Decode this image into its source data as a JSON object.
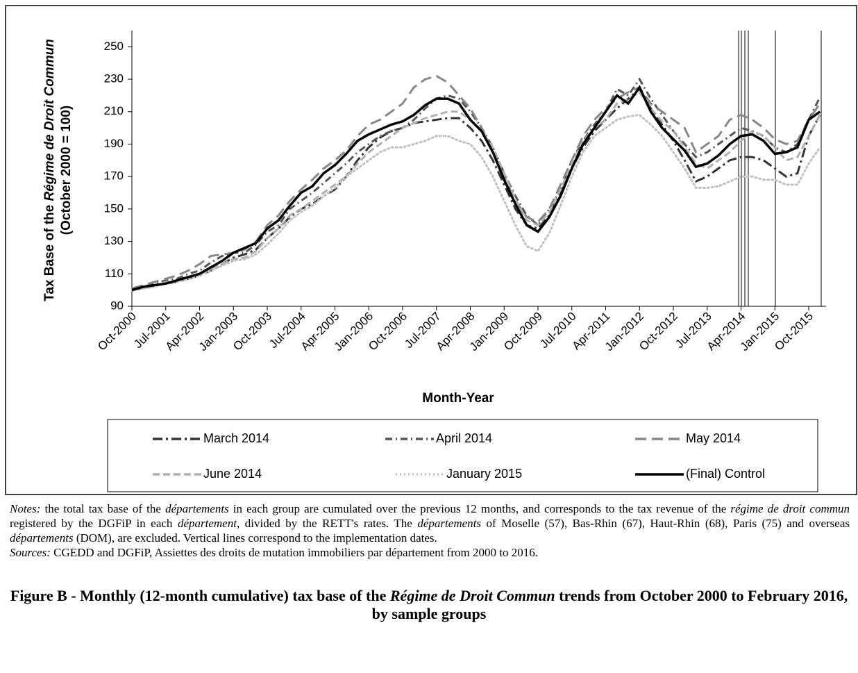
{
  "chart_data": {
    "type": "line",
    "ylabel": [
      {
        "text": "Tax Base of the "
      },
      {
        "text": "Régime de Droit Commun",
        "italic": true
      },
      {
        "text": "(October 2000 = 100)"
      }
    ],
    "xlabel": "Month-Year",
    "categories": [
      "Oct-2000",
      null,
      null,
      "Jul-2001",
      null,
      null,
      "Apr-2002",
      null,
      null,
      "Jan-2003",
      null,
      null,
      "Oct-2003",
      null,
      null,
      "Jul-2004",
      null,
      null,
      "Apr-2005",
      null,
      null,
      "Jan-2006",
      null,
      null,
      "Oct-2006",
      null,
      null,
      "Jul-2007",
      null,
      null,
      "Apr-2008",
      null,
      null,
      "Jan-2009",
      null,
      null,
      "Oct-2009",
      null,
      null,
      "Jul-2010",
      null,
      null,
      "Apr-2011",
      null,
      null,
      "Jan-2012",
      null,
      null,
      "Oct-2012",
      null,
      null,
      "Jul-2013",
      null,
      null,
      "Apr-2014",
      null,
      null,
      "Jan-2015",
      null,
      null,
      "Oct-2015",
      null
    ],
    "ylim": [
      90,
      260
    ],
    "yticks": [
      90,
      110,
      130,
      150,
      170,
      190,
      210,
      230,
      250
    ],
    "grid": false,
    "series": [
      {
        "name": "March 2014",
        "color": "#333333",
        "style": "dash-dot-long",
        "values": [
          100,
          101,
          103,
          104,
          105,
          107,
          109,
          112,
          116,
          120,
          122,
          125,
          132,
          138,
          145,
          150,
          153,
          158,
          162,
          170,
          180,
          188,
          194,
          198,
          200,
          203,
          204,
          205,
          206,
          206,
          200,
          192,
          180,
          165,
          150,
          140,
          138,
          146,
          160,
          175,
          188,
          198,
          205,
          212,
          218,
          224,
          212,
          202,
          192,
          180,
          167,
          170,
          175,
          180,
          182,
          182,
          180,
          175,
          170,
          172,
          195,
          208
        ]
      },
      {
        "name": "April 2014",
        "color": "#555555",
        "style": "dash-dot",
        "values": [
          101,
          102,
          104,
          106,
          107,
          110,
          112,
          117,
          121,
          123,
          123,
          128,
          136,
          140,
          150,
          155,
          160,
          166,
          172,
          178,
          185,
          190,
          195,
          198,
          200,
          205,
          212,
          218,
          220,
          218,
          210,
          200,
          188,
          172,
          158,
          146,
          140,
          150,
          162,
          180,
          192,
          202,
          210,
          224,
          220,
          230,
          218,
          208,
          198,
          190,
          182,
          185,
          190,
          195,
          200,
          198,
          195,
          188,
          185,
          190,
          205,
          219
        ]
      },
      {
        "name": "May 2014",
        "color": "#888888",
        "style": "long-dash",
        "values": [
          101,
          103,
          105,
          107,
          109,
          112,
          116,
          121,
          122,
          123,
          125,
          130,
          140,
          146,
          155,
          162,
          168,
          175,
          180,
          186,
          195,
          202,
          205,
          210,
          215,
          225,
          230,
          232,
          228,
          220,
          212,
          200,
          185,
          170,
          155,
          145,
          142,
          150,
          165,
          180,
          195,
          205,
          212,
          218,
          222,
          225,
          215,
          210,
          205,
          200,
          185,
          190,
          195,
          205,
          208,
          205,
          200,
          193,
          190,
          192,
          205,
          215
        ]
      },
      {
        "name": "June 2014",
        "color": "#b0b0b0",
        "style": "dash",
        "values": [
          100,
          101,
          103,
          105,
          106,
          108,
          110,
          113,
          116,
          119,
          120,
          124,
          132,
          138,
          146,
          150,
          155,
          160,
          165,
          170,
          178,
          185,
          190,
          195,
          200,
          203,
          206,
          208,
          210,
          210,
          205,
          198,
          188,
          172,
          156,
          143,
          140,
          148,
          162,
          178,
          192,
          200,
          205,
          215,
          218,
          222,
          212,
          204,
          198,
          188,
          178,
          175,
          180,
          185,
          192,
          198,
          195,
          188,
          180,
          182,
          195,
          208
        ]
      },
      {
        "name": "January 2015",
        "color": "#c0c0c0",
        "style": "dot",
        "values": [
          100,
          101,
          102,
          104,
          105,
          107,
          109,
          112,
          115,
          118,
          119,
          122,
          128,
          135,
          143,
          148,
          152,
          158,
          163,
          170,
          175,
          180,
          185,
          188,
          188,
          190,
          192,
          195,
          195,
          192,
          190,
          182,
          170,
          155,
          140,
          127,
          124,
          135,
          152,
          170,
          185,
          195,
          200,
          205,
          207,
          208,
          202,
          195,
          185,
          175,
          163,
          163,
          164,
          167,
          170,
          170,
          168,
          168,
          165,
          165,
          178,
          188
        ]
      },
      {
        "name": "(Final) Control",
        "color": "#000000",
        "style": "solid",
        "values": [
          100,
          102,
          103,
          104,
          106,
          108,
          110,
          114,
          118,
          123,
          126,
          129,
          138,
          143,
          152,
          160,
          164,
          172,
          177,
          184,
          192,
          196,
          199,
          202,
          204,
          208,
          214,
          218,
          218,
          215,
          205,
          198,
          185,
          168,
          153,
          140,
          136,
          145,
          158,
          175,
          190,
          200,
          210,
          220,
          215,
          225,
          210,
          200,
          193,
          186,
          176,
          178,
          183,
          190,
          195,
          196,
          192,
          184,
          185,
          188,
          205,
          210
        ]
      }
    ]
  },
  "notes": [
    {
      "text": "Notes:",
      "italic": true
    },
    {
      "text": " the total tax base of the "
    },
    {
      "text": "départements",
      "italic": true
    },
    {
      "text": " in each group are cumulated over the previous 12 months, and corresponds to the tax revenue of the "
    },
    {
      "text": "régime de droit commun",
      "italic": true
    },
    {
      "text": " registered by the DGFiP in each "
    },
    {
      "text": "département",
      "italic": true
    },
    {
      "text": ", divided by the RETT's rates. The "
    },
    {
      "text": "départements",
      "italic": true
    },
    {
      "text": " of Moselle (57), Bas-Rhin (67), Haut-Rhin (68), Paris (75) and overseas "
    },
    {
      "text": "départements",
      "italic": true
    },
    {
      "text": " (DOM), are excluded. Vertical lines correspond to the implementation dates."
    }
  ],
  "sources": [
    {
      "text": "Sources:",
      "italic": true
    },
    {
      "text": " CGEDD and DGFiP, Assiettes des droits de mutation immobiliers par département from 2000 to 2016."
    }
  ],
  "caption": [
    {
      "text": "Figure B - Monthly (12-month cumulative) tax base of the "
    },
    {
      "text": "Régime de Droit Commun",
      "italic": true
    },
    {
      "text": " trends from October 2000 to February 2016, by sample groups"
    }
  ]
}
